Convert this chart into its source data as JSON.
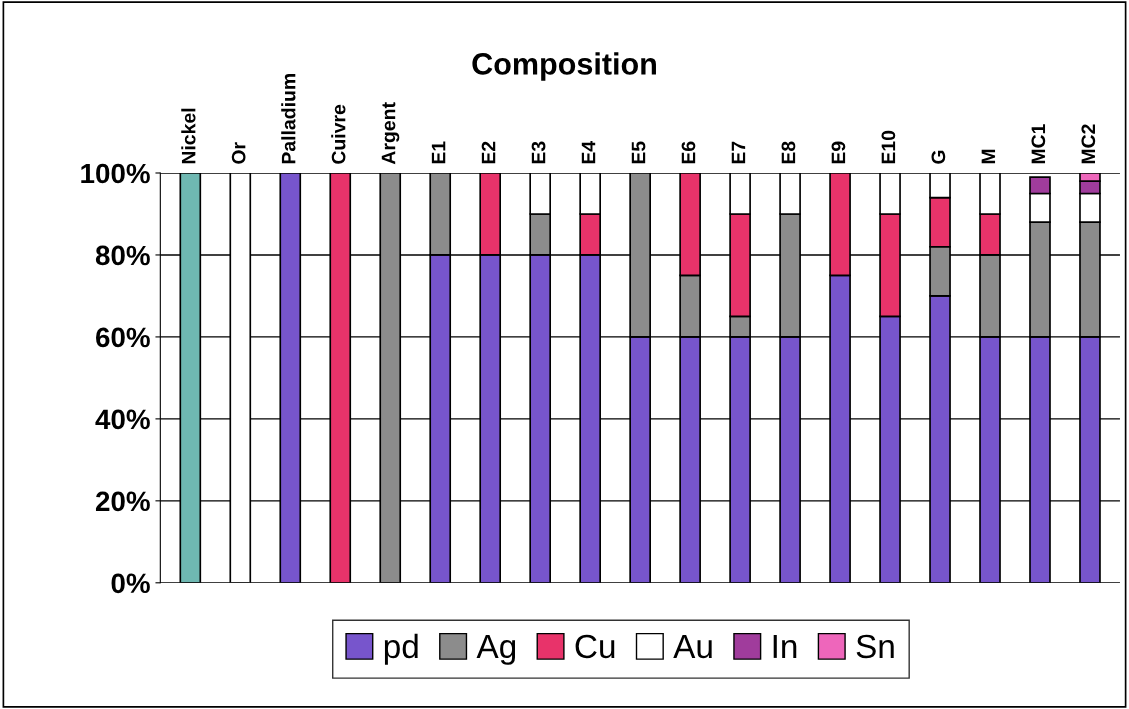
{
  "chart_data": {
    "type": "bar",
    "stacked": true,
    "title": "Composition",
    "categories": [
      "Nickel",
      "Or",
      "Palladium",
      "Cuivre",
      "Argent",
      "E1",
      "E2",
      "E3",
      "E4",
      "E5",
      "E6",
      "E7",
      "E8",
      "E9",
      "E10",
      "G",
      "M",
      "MC1",
      "MC2"
    ],
    "series": [
      {
        "color": "#6fb8b2",
        "values": [
          100,
          0,
          0,
          0,
          0,
          0,
          0,
          0,
          0,
          0,
          0,
          0,
          0,
          0,
          0,
          0,
          0,
          0,
          0
        ]
      },
      {
        "name": "pd",
        "color": "#7755cc",
        "values": [
          0,
          0,
          100,
          0,
          0,
          80,
          80,
          80,
          80,
          60,
          60,
          60,
          60,
          75,
          65,
          70,
          60,
          60,
          60
        ]
      },
      {
        "name": "Ag",
        "color": "#8c8c8c",
        "values": [
          0,
          0,
          0,
          0,
          100,
          20,
          0,
          10,
          0,
          40,
          15,
          5,
          30,
          0,
          0,
          12,
          20,
          28,
          28
        ]
      },
      {
        "name": "Cu",
        "color": "#e8336a",
        "values": [
          0,
          0,
          0,
          100,
          0,
          0,
          20,
          0,
          10,
          0,
          25,
          25,
          0,
          25,
          25,
          12,
          10,
          0,
          0
        ]
      },
      {
        "name": "Au",
        "color": "#ffffff",
        "values": [
          0,
          100,
          0,
          0,
          0,
          0,
          0,
          10,
          10,
          0,
          0,
          10,
          10,
          0,
          10,
          6,
          10,
          7,
          7
        ]
      },
      {
        "name": "In",
        "color": "#a03c9c",
        "values": [
          0,
          0,
          0,
          0,
          0,
          0,
          0,
          0,
          0,
          0,
          0,
          0,
          0,
          0,
          0,
          0,
          0,
          4,
          3
        ]
      },
      {
        "name": "Sn",
        "color": "#ee66bb",
        "values": [
          0,
          0,
          0,
          0,
          0,
          0,
          0,
          0,
          0,
          0,
          0,
          0,
          0,
          0,
          0,
          0,
          0,
          0,
          2
        ]
      }
    ],
    "ylim": [
      0,
      100
    ],
    "yticks": [
      {
        "value": 0,
        "label": "0%"
      },
      {
        "value": 20,
        "label": "20%"
      },
      {
        "value": 40,
        "label": "40%"
      },
      {
        "value": 60,
        "label": "60%"
      },
      {
        "value": 80,
        "label": "80%"
      },
      {
        "value": 100,
        "label": "100%"
      }
    ],
    "grid": "y",
    "legend": "bottom"
  }
}
